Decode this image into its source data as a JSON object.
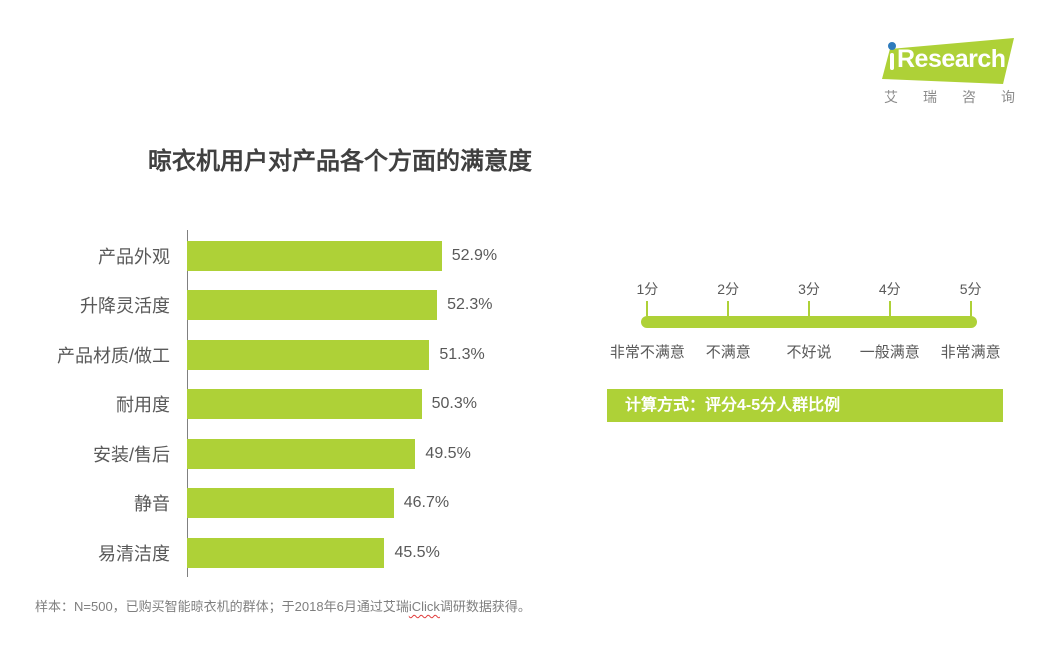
{
  "colors": {
    "green": "#aed137",
    "blue": "#2e7bbd"
  },
  "logo": {
    "brand_i": "i",
    "brand_rest": "Research",
    "subtitle": "艾瑞咨询"
  },
  "title": "晾衣机用户对产品各个方面的满意度",
  "chart_data": {
    "type": "bar",
    "orientation": "horizontal",
    "title": "晾衣机用户对产品各个方面的满意度",
    "categories": [
      "产品外观",
      "升降灵活度",
      "产品材质/做工",
      "耐用度",
      "安装/售后",
      "静音",
      "易清洁度"
    ],
    "values": [
      52.9,
      52.3,
      51.3,
      50.3,
      49.5,
      46.7,
      45.5
    ],
    "value_labels": [
      "52.9%",
      "52.3%",
      "51.3%",
      "50.3%",
      "49.5%",
      "46.7%",
      "45.5%"
    ],
    "unit": "%",
    "xlim": [
      20,
      55
    ],
    "bar_color": "#aed137",
    "grid": false,
    "legend": "none"
  },
  "rating_scale": {
    "points": [
      {
        "score": "1分",
        "label": "非常不满意"
      },
      {
        "score": "2分",
        "label": "不满意"
      },
      {
        "score": "3分",
        "label": "不好说"
      },
      {
        "score": "4分",
        "label": "一般满意"
      },
      {
        "score": "5分",
        "label": "非常满意"
      }
    ]
  },
  "method_box": {
    "text": "计算方式：评分4-5分人群比例"
  },
  "footnote": {
    "prefix": "样本：N=500，已购买智能晾衣机的群体；于2018年6月通过艾瑞",
    "spellcheck_word": "iClick",
    "suffix": "调研数据获得。"
  }
}
